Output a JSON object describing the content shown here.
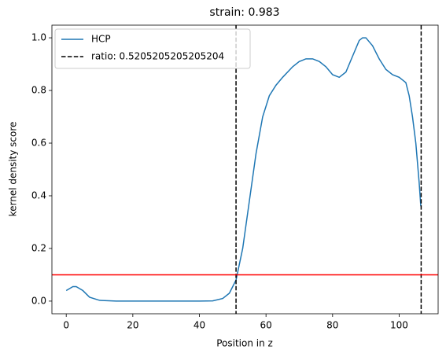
{
  "chart_data": {
    "type": "line",
    "title": "strain: 0.983",
    "xlabel": "Position in z",
    "ylabel": "kernel density score",
    "series": [
      {
        "name": "HCP",
        "color": "#1f77b4",
        "x": [
          0,
          2,
          3,
          5,
          7,
          10,
          15,
          20,
          30,
          40,
          44,
          47,
          49,
          51,
          53,
          55,
          57,
          59,
          61,
          63,
          65,
          68,
          70,
          72,
          74,
          76,
          78,
          80,
          82,
          84,
          86,
          88,
          89,
          90,
          92,
          94,
          96,
          98,
          100,
          102,
          103,
          104,
          105,
          106,
          106.5
        ],
        "values": [
          0.04,
          0.055,
          0.055,
          0.04,
          0.015,
          0.003,
          0,
          0,
          0,
          0,
          0.001,
          0.01,
          0.03,
          0.08,
          0.2,
          0.38,
          0.56,
          0.7,
          0.78,
          0.82,
          0.85,
          0.89,
          0.91,
          0.92,
          0.92,
          0.91,
          0.89,
          0.86,
          0.85,
          0.87,
          0.93,
          0.99,
          1.0,
          1.0,
          0.97,
          0.92,
          0.88,
          0.86,
          0.85,
          0.83,
          0.78,
          0.7,
          0.6,
          0.45,
          0.36
        ]
      }
    ],
    "vlines": {
      "name": "ratio: 0.5205205205205204",
      "color": "#000000",
      "values": [
        51,
        106.6
      ]
    },
    "hline": {
      "value": 0.1,
      "color": "#ff0000"
    },
    "xlim": [
      -4.3,
      111.7
    ],
    "ylim": [
      -0.048,
      1.048
    ],
    "xticks": [
      0,
      20,
      40,
      60,
      80,
      100
    ],
    "yticks": [
      {
        "value": 0,
        "label": "0.0"
      },
      0.2,
      0.4,
      0.6,
      0.8,
      {
        "value": 1,
        "label": "1.0"
      }
    ],
    "legend": "upper left"
  }
}
